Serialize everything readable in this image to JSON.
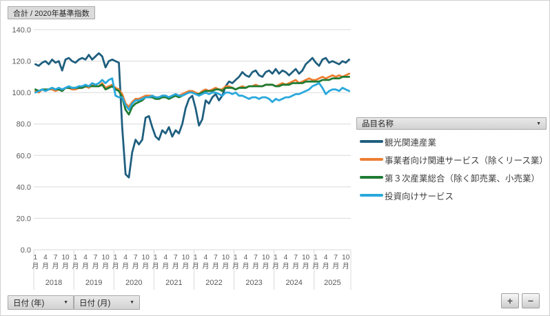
{
  "pivot": {
    "value_field_label": "合計 / 2020年基準指数",
    "legend_field_label": "品目名称",
    "axis_field_year_label": "日付 (年)",
    "axis_field_month_label": "日付 (月)",
    "expand_label": "+",
    "collapse_label": "−"
  },
  "icons": {
    "dropdown": "▼"
  },
  "colors": {
    "grid": "#d9d9d9",
    "axis_text": "#595959",
    "plot_background": "#ffffff"
  },
  "chart_data": {
    "type": "line",
    "title": "合計 / 2020年基準指数",
    "xlabel": "日付 (年) / 日付 (月)",
    "ylabel": "",
    "ylim": [
      0,
      140
    ],
    "ytick_step": 20,
    "grid": true,
    "legend_position": "right",
    "x_frequency": "monthly",
    "x_start": "2018-01",
    "x_end": "2025-11",
    "years": [
      2018,
      2019,
      2020,
      2021,
      2022,
      2023,
      2024,
      2025
    ],
    "xtick_months": [
      1,
      4,
      7,
      10
    ],
    "month_suffix": "月",
    "series": [
      {
        "name": "観光関連産業",
        "color": "#1f5f7f",
        "values": [
          118,
          117,
          119,
          120,
          118,
          121,
          119,
          120,
          114,
          121,
          122,
          120,
          119,
          121,
          122,
          121,
          124,
          121,
          123,
          125,
          123,
          116,
          120,
          121,
          120,
          119,
          78,
          48,
          46,
          62,
          70,
          67,
          70,
          84,
          85,
          78,
          72,
          70,
          76,
          74,
          78,
          72,
          76,
          74,
          80,
          90,
          96,
          98,
          90,
          79,
          83,
          95,
          93,
          97,
          99,
          95,
          98,
          104,
          107,
          106,
          108,
          110,
          113,
          111,
          110,
          113,
          114,
          111,
          110,
          113,
          114,
          112,
          115,
          112,
          114,
          113,
          111,
          113,
          115,
          112,
          114,
          118,
          120,
          122,
          119,
          117,
          121,
          122,
          119,
          120,
          119,
          118,
          120,
          119,
          121
        ]
      },
      {
        "name": "事業者向け関連サービス（除くリース業）",
        "color": "#ed7d31",
        "values": [
          101,
          100,
          102,
          101,
          102,
          102,
          101,
          102,
          101,
          103,
          103,
          102,
          102,
          103,
          103,
          104,
          103,
          105,
          104,
          104,
          106,
          103,
          104,
          105,
          103,
          102,
          99,
          93,
          91,
          94,
          96,
          96,
          97,
          98,
          98,
          98,
          97,
          97,
          98,
          98,
          97,
          98,
          99,
          98,
          99,
          100,
          101,
          101,
          100,
          99,
          101,
          102,
          101,
          102,
          103,
          102,
          102,
          104,
          104,
          103,
          102,
          103,
          104,
          103,
          104,
          104,
          105,
          104,
          104,
          105,
          105,
          105,
          104,
          105,
          106,
          105,
          106,
          107,
          108,
          106,
          107,
          108,
          109,
          108,
          108,
          109,
          110,
          109,
          110,
          111,
          110,
          111,
          110,
          111,
          112
        ]
      },
      {
        "name": "第３次産業総合（除く卸売業、小売業）",
        "color": "#1f7b33",
        "values": [
          102,
          101,
          102,
          102,
          102,
          103,
          102,
          102,
          101,
          103,
          103,
          103,
          103,
          103,
          103,
          104,
          104,
          104,
          104,
          104,
          105,
          102,
          103,
          104,
          102,
          101,
          97,
          89,
          86,
          91,
          93,
          94,
          95,
          97,
          97,
          97,
          96,
          96,
          97,
          97,
          96,
          97,
          98,
          97,
          98,
          99,
          100,
          100,
          99,
          99,
          100,
          101,
          101,
          101,
          102,
          102,
          101,
          103,
          103,
          103,
          102,
          103,
          103,
          103,
          104,
          104,
          104,
          104,
          104,
          105,
          105,
          105,
          104,
          104,
          105,
          105,
          105,
          106,
          106,
          106,
          106,
          107,
          107,
          107,
          107,
          107,
          108,
          108,
          108,
          109,
          109,
          109,
          110,
          110,
          110
        ]
      },
      {
        "name": "投資向けサービス",
        "color": "#29a8dc",
        "values": [
          100,
          101,
          102,
          101,
          102,
          103,
          102,
          103,
          102,
          103,
          104,
          103,
          103,
          104,
          104,
          105,
          104,
          106,
          105,
          106,
          108,
          106,
          108,
          109,
          98,
          97,
          97,
          92,
          89,
          93,
          95,
          95,
          96,
          97,
          97,
          98,
          97,
          97,
          98,
          98,
          97,
          98,
          99,
          98,
          98,
          99,
          100,
          100,
          99,
          98,
          99,
          100,
          99,
          100,
          100,
          99,
          98,
          100,
          100,
          99,
          100,
          98,
          98,
          97,
          96,
          97,
          97,
          96,
          97,
          97,
          96,
          94,
          96,
          95,
          96,
          97,
          97,
          98,
          99,
          99,
          100,
          101,
          102,
          104,
          105,
          106,
          103,
          99,
          101,
          102,
          102,
          101,
          103,
          102,
          101
        ]
      }
    ]
  }
}
